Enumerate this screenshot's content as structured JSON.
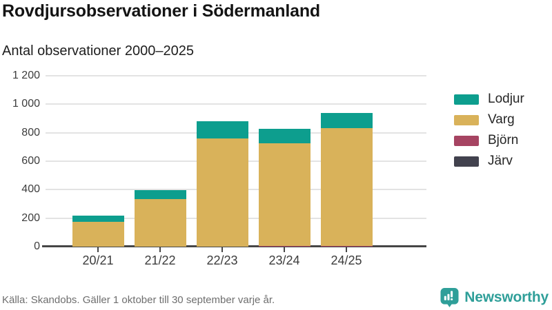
{
  "title": "Rovdjursobservationer i Södermanland",
  "subtitle": "Antal observationer 2000–2025",
  "source": "Källa: Skandobs. Gäller 1 oktober till 30 september varje år.",
  "branding": {
    "name": "Newsworthy",
    "color": "#2f9f99",
    "icon": "newsworthy-chart-bubble-icon"
  },
  "chart_data": {
    "type": "bar",
    "stacked": true,
    "title": "Rovdjursobservationer i Södermanland",
    "subtitle": "Antal observationer 2000–2025",
    "xlabel": "",
    "ylabel": "Antal observationer",
    "categories": [
      "20/21",
      "21/22",
      "22/23",
      "23/24",
      "24/25"
    ],
    "series": [
      {
        "name": "Lodjur",
        "color": "#0d9e8e",
        "values": [
          42,
          62,
          118,
          98,
          108
        ]
      },
      {
        "name": "Varg",
        "color": "#d9b25a",
        "values": [
          175,
          335,
          762,
          722,
          823
        ]
      },
      {
        "name": "Björn",
        "color": "#a64462",
        "values": [
          0,
          0,
          0,
          6,
          7
        ]
      },
      {
        "name": "Järv",
        "color": "#42424e",
        "values": [
          0,
          0,
          0,
          0,
          0
        ]
      }
    ],
    "totals_estimated": [
      217,
      397,
      880,
      826,
      938
    ],
    "stack_order_bottom_to_top": [
      "Järv",
      "Björn",
      "Varg",
      "Lodjur"
    ],
    "ylim": [
      0,
      1200
    ],
    "yticks": [
      {
        "value": 0,
        "label": "0"
      },
      {
        "value": 200,
        "label": "200"
      },
      {
        "value": 400,
        "label": "400"
      },
      {
        "value": 600,
        "label": "600"
      },
      {
        "value": 800,
        "label": "800"
      },
      {
        "value": 1000,
        "label": "1 000"
      },
      {
        "value": 1200,
        "label": "1 200"
      }
    ],
    "legend_position": "right",
    "grid": "horizontal",
    "gridline_color": "#e3e3e3",
    "axis_color": "#464646"
  }
}
